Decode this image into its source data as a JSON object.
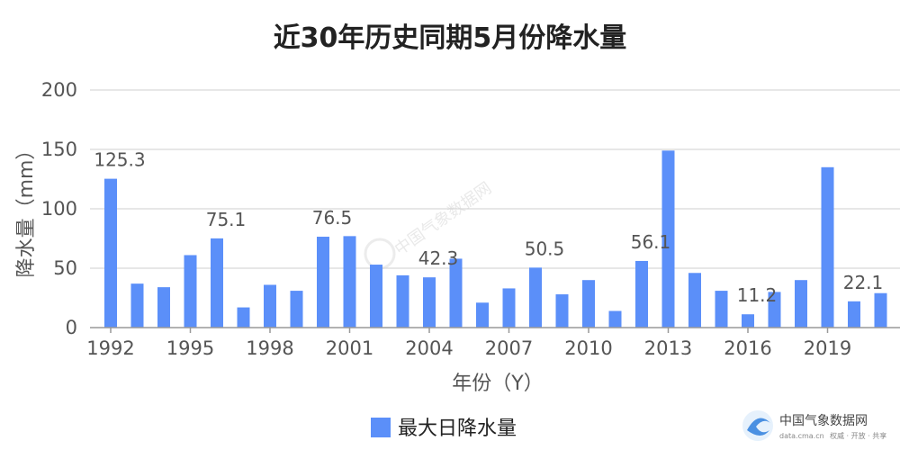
{
  "chart_data": {
    "type": "bar",
    "title": "近30年历史同期5月份降水量",
    "xlabel": "年份（Y）",
    "ylabel": "降水量（mm）",
    "ylim": [
      0,
      200
    ],
    "yticks": [
      0,
      50,
      100,
      150,
      200
    ],
    "grid": true,
    "legend_position": "bottom-center",
    "categories": [
      1992,
      1993,
      1994,
      1995,
      1996,
      1997,
      1998,
      1999,
      2000,
      2001,
      2002,
      2003,
      2004,
      2005,
      2006,
      2007,
      2008,
      2009,
      2010,
      2011,
      2012,
      2013,
      2014,
      2015,
      2016,
      2017,
      2018,
      2019,
      2020,
      2021
    ],
    "xtick_labels": [
      "1992",
      "1995",
      "1998",
      "2001",
      "2004",
      "2007",
      "2010",
      "2013",
      "2016",
      "2019"
    ],
    "series": [
      {
        "name": "最大日降水量",
        "color": "#5b8ff9",
        "values": [
          125.3,
          37,
          34,
          61,
          75.1,
          17,
          36,
          31,
          76.5,
          77,
          53,
          44,
          42.3,
          58,
          21,
          33,
          50.5,
          28,
          40,
          14,
          56.1,
          149,
          46,
          31,
          11.2,
          30,
          40,
          135,
          22.1,
          29
        ],
        "data_labels": [
          "125.3",
          "",
          "",
          "",
          "75.1",
          "",
          "",
          "",
          "76.5",
          "",
          "",
          "",
          "42.3",
          "",
          "",
          "",
          "50.5",
          "",
          "",
          "",
          "56.1",
          "",
          "",
          "",
          "11.2",
          "",
          "",
          "",
          "22.1",
          ""
        ]
      }
    ]
  },
  "watermark": {
    "text": "中国气象数据网",
    "icon": "swirl-logo-icon"
  },
  "branding": {
    "name": "中国气象数据网",
    "url": "data.cma.cn",
    "tagline": "权威 · 开放 · 共享",
    "icon": "cma-logo-icon",
    "color": "#3a7bd5"
  }
}
